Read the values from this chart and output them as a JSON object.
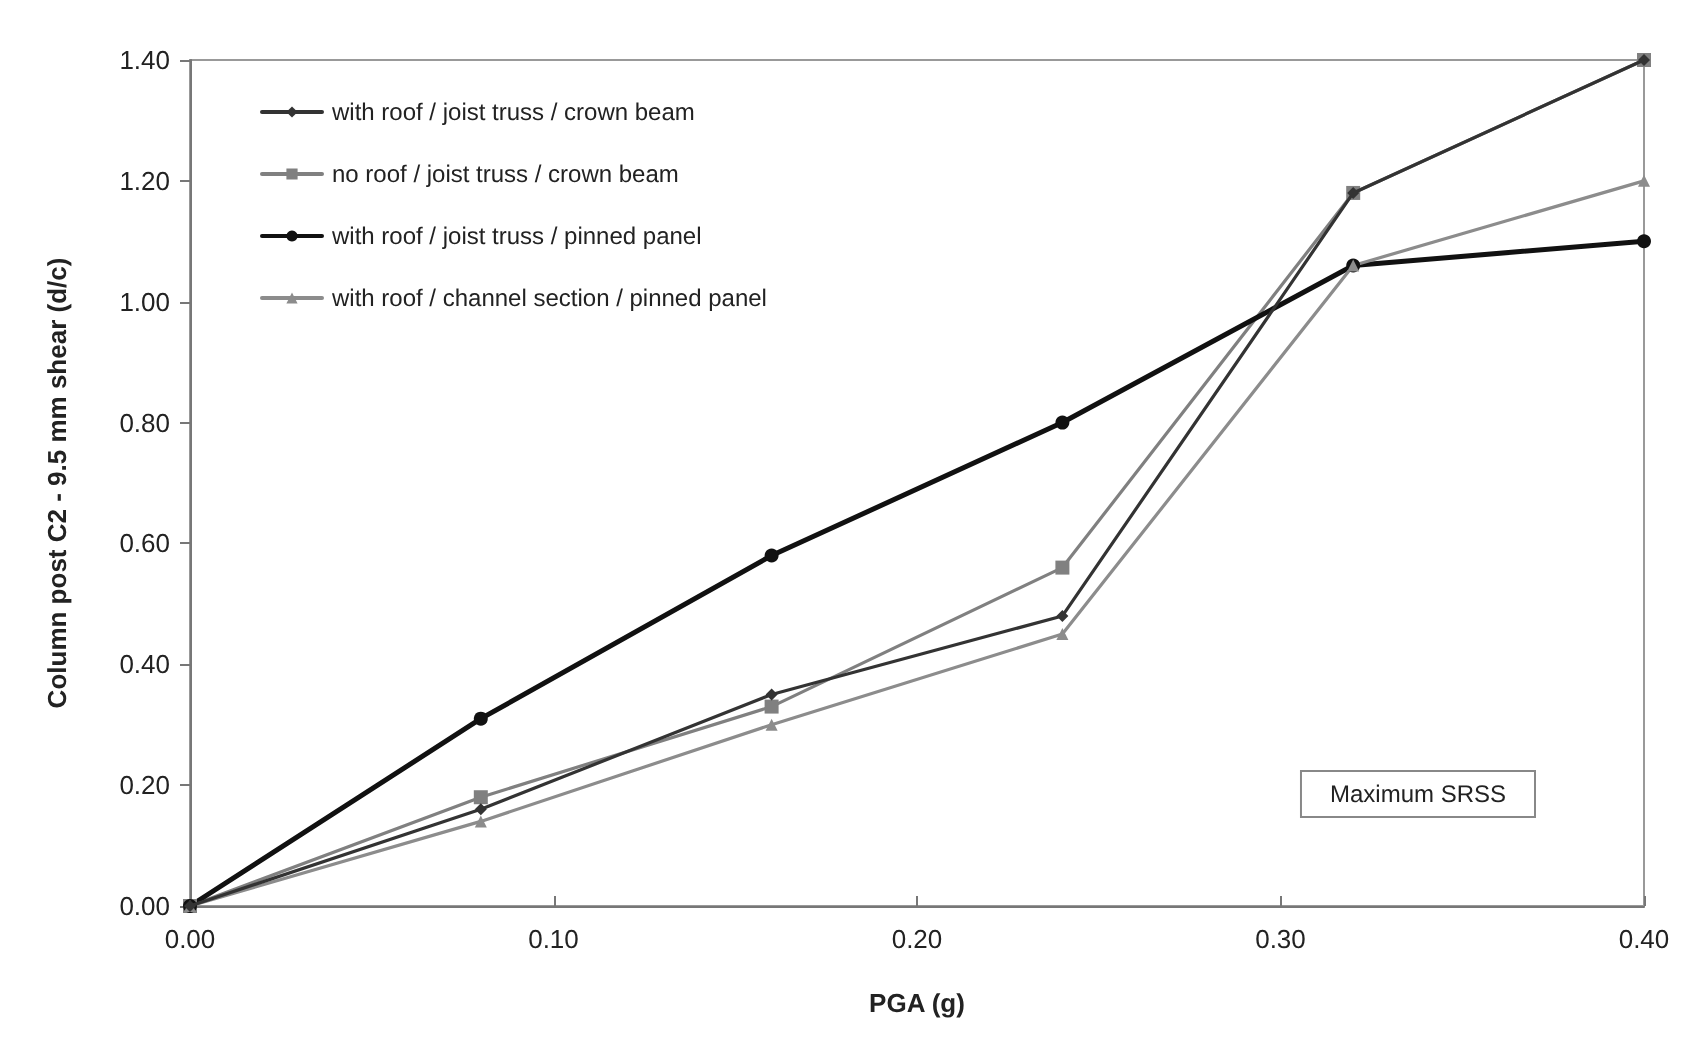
{
  "chart_data": {
    "type": "line",
    "xlabel": "PGA (g)",
    "ylabel": "Column post C2 - 9.5 mm shear (d/c)",
    "x": [
      0,
      0.08,
      0.16,
      0.24,
      0.32,
      0.4
    ],
    "series": [
      {
        "name": "with roof / joist truss / crown beam",
        "color": "#333333",
        "marker": "diamond",
        "values": [
          0,
          0.16,
          0.35,
          0.48,
          1.18,
          1.4
        ]
      },
      {
        "name": "no roof / joist truss / crown beam",
        "color": "#808080",
        "marker": "square",
        "values": [
          0,
          0.18,
          0.33,
          0.56,
          1.18,
          1.4
        ]
      },
      {
        "name": "with roof / joist truss / pinned panel",
        "color": "#111111",
        "marker": "circle",
        "values": [
          0,
          0.31,
          0.58,
          0.8,
          1.06,
          1.1
        ]
      },
      {
        "name": "with roof / channel section / pinned panel",
        "color": "#8c8c8c",
        "marker": "triangle",
        "values": [
          0,
          0.14,
          0.3,
          0.45,
          1.06,
          1.2
        ]
      }
    ],
    "xlim": [
      0,
      0.4
    ],
    "xticks": [
      {
        "value": 0,
        "label": "0.00"
      },
      {
        "value": 0.1,
        "label": "0.10"
      },
      {
        "value": 0.2,
        "label": "0.20"
      },
      {
        "value": 0.3,
        "label": "0.30"
      },
      {
        "value": 0.4,
        "label": "0.40"
      }
    ],
    "ylim": [
      0,
      1.4
    ],
    "yticks": [
      {
        "value": 0,
        "label": "0.00"
      },
      {
        "value": 0.2,
        "label": "0.20"
      },
      {
        "value": 0.4,
        "label": "0.40"
      },
      {
        "value": 0.6,
        "label": "0.60"
      },
      {
        "value": 0.8,
        "label": "0.80"
      },
      {
        "value": 1.0,
        "label": "1.00"
      },
      {
        "value": 1.2,
        "label": "1.20"
      },
      {
        "value": 1.4,
        "label": "1.40"
      }
    ],
    "annotations": [
      "Maximum SRSS"
    ],
    "legend": "top left",
    "grid": false,
    "line_style": "solid"
  }
}
